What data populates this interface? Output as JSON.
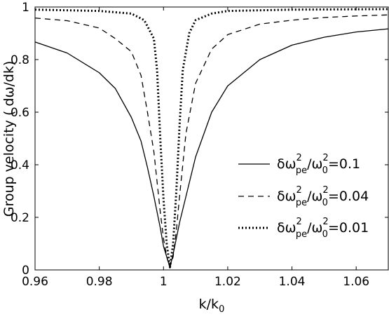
{
  "chart_data": {
    "type": "line",
    "xlabel": {
      "main": "k/k",
      "sub": "0"
    },
    "ylabel": "Group velocity ( dω/dk)",
    "xlim": [
      0.96,
      1.07
    ],
    "ylim": [
      0,
      1
    ],
    "xticks": [
      0.96,
      0.98,
      1,
      1.02,
      1.04,
      1.06
    ],
    "xtick_labels": [
      "0.96",
      "0.98",
      "1",
      "1.02",
      "1.04",
      "1.06"
    ],
    "yticks": [
      0,
      0.2,
      0.4,
      0.6,
      0.8,
      1
    ],
    "ytick_labels": [
      "0",
      "0.2",
      "0.4",
      "0.6",
      "0.8",
      "1"
    ],
    "grid": false,
    "legend_position": "right",
    "series": [
      {
        "label_main": "δω",
        "label_sup1": "2",
        "label_sub1": "pe",
        "label_mid": "/ω",
        "label_sup2": "2",
        "label_sub2": "0",
        "label_tail": "=0.1",
        "style": "solid",
        "x": [
          0.96,
          0.97,
          0.98,
          0.985,
          0.99,
          0.993,
          0.995,
          0.997,
          0.999,
          1.0,
          1.001,
          1.002,
          1.003,
          1.004,
          1.005,
          1.007,
          1.01,
          1.015,
          1.02,
          1.03,
          1.04,
          1.05,
          1.06,
          1.07
        ],
        "y": [
          0.867,
          0.825,
          0.75,
          0.69,
          0.58,
          0.49,
          0.39,
          0.28,
          0.16,
          0.09,
          0.05,
          0.01,
          0.06,
          0.12,
          0.18,
          0.28,
          0.43,
          0.6,
          0.7,
          0.8,
          0.855,
          0.885,
          0.905,
          0.917
        ]
      },
      {
        "label_main": "δω",
        "label_sup1": "2",
        "label_sub1": "pe",
        "label_mid": "/ω",
        "label_sup2": "2",
        "label_sub2": "0",
        "label_tail": "=0.04",
        "style": "dashed",
        "x": [
          0.96,
          0.97,
          0.98,
          0.985,
          0.99,
          0.993,
          0.995,
          0.997,
          0.999,
          1.0,
          1.001,
          1.002,
          1.003,
          1.004,
          1.005,
          1.007,
          1.01,
          1.015,
          1.02,
          1.03,
          1.04,
          1.05,
          1.06,
          1.07
        ],
        "y": [
          0.958,
          0.948,
          0.92,
          0.88,
          0.83,
          0.74,
          0.6,
          0.45,
          0.22,
          0.12,
          0.05,
          0.01,
          0.05,
          0.15,
          0.28,
          0.52,
          0.71,
          0.84,
          0.895,
          0.935,
          0.95,
          0.96,
          0.966,
          0.97
        ]
      },
      {
        "label_main": "δω",
        "label_sup1": "2",
        "label_sub1": "pe",
        "label_mid": "/ω",
        "label_sup2": "2",
        "label_sub2": "0",
        "label_tail": "=0.01",
        "style": "dotted",
        "x": [
          0.96,
          0.98,
          0.99,
          0.994,
          0.997,
          0.998,
          0.999,
          1.0,
          1.001,
          1.002,
          1.003,
          1.004,
          1.005,
          1.006,
          1.008,
          1.01,
          1.015,
          1.02,
          1.04,
          1.07
        ],
        "y": [
          0.99,
          0.985,
          0.975,
          0.95,
          0.88,
          0.76,
          0.5,
          0.27,
          0.1,
          0.01,
          0.1,
          0.3,
          0.55,
          0.76,
          0.9,
          0.95,
          0.975,
          0.985,
          0.99,
          0.992
        ]
      }
    ]
  }
}
